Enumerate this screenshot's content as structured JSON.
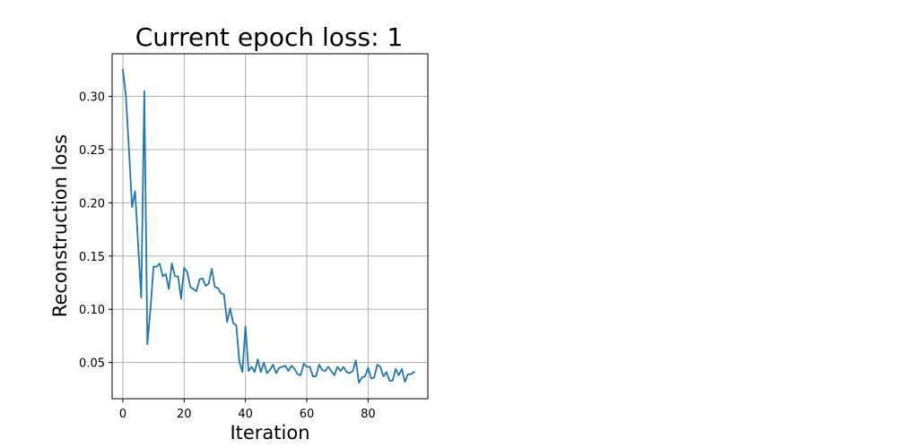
{
  "chart_data": {
    "type": "line",
    "title": "Current epoch loss: 1",
    "xlabel": "Iteration",
    "ylabel": "Reconstruction loss",
    "xlim": [
      -3.5,
      99.5
    ],
    "ylim": [
      0.016,
      0.34
    ],
    "xticks": [
      0,
      20,
      40,
      60,
      80
    ],
    "yticks": [
      0.05,
      0.1,
      0.15,
      0.2,
      0.25,
      0.3
    ],
    "ytick_labels": [
      "0.05",
      "0.10",
      "0.15",
      "0.20",
      "0.25",
      "0.30"
    ],
    "grid": true,
    "legend": "none",
    "line_color": "#1f77b4",
    "series": [
      {
        "x": [
          0,
          1,
          2,
          3,
          4,
          5,
          6,
          7,
          8,
          9,
          10,
          11,
          12,
          13,
          14,
          15,
          16,
          17,
          18,
          19,
          20,
          21,
          22,
          23,
          24,
          25,
          26,
          27,
          28,
          29,
          30,
          31,
          32,
          33,
          34,
          35,
          36,
          37,
          38,
          39,
          40,
          41,
          42,
          43,
          44,
          45,
          46,
          47,
          48,
          49,
          50,
          51,
          52,
          53,
          54,
          55,
          56,
          57,
          58,
          59,
          60,
          61,
          62,
          63,
          64,
          65,
          66,
          67,
          68,
          69,
          70,
          71,
          72,
          73,
          74,
          75,
          76,
          77,
          78,
          79,
          80,
          81,
          82,
          83,
          84,
          85,
          86,
          87,
          88,
          89,
          90,
          91,
          92,
          93,
          94,
          95
        ],
        "values": [
          0.325,
          0.3,
          0.25,
          0.196,
          0.211,
          0.16,
          0.111,
          0.305,
          0.067,
          0.1,
          0.14,
          0.14,
          0.143,
          0.131,
          0.133,
          0.119,
          0.143,
          0.131,
          0.131,
          0.11,
          0.139,
          0.135,
          0.121,
          0.119,
          0.117,
          0.128,
          0.129,
          0.122,
          0.124,
          0.138,
          0.121,
          0.12,
          0.115,
          0.114,
          0.088,
          0.101,
          0.087,
          0.085,
          0.051,
          0.041,
          0.084,
          0.042,
          0.046,
          0.041,
          0.053,
          0.041,
          0.05,
          0.04,
          0.043,
          0.048,
          0.04,
          0.045,
          0.046,
          0.047,
          0.042,
          0.047,
          0.044,
          0.039,
          0.038,
          0.049,
          0.046,
          0.046,
          0.037,
          0.037,
          0.048,
          0.043,
          0.042,
          0.046,
          0.042,
          0.038,
          0.046,
          0.042,
          0.046,
          0.041,
          0.04,
          0.042,
          0.052,
          0.031,
          0.036,
          0.037,
          0.045,
          0.035,
          0.036,
          0.048,
          0.046,
          0.037,
          0.041,
          0.033,
          0.033,
          0.044,
          0.038,
          0.044,
          0.032,
          0.039,
          0.039,
          0.041
        ]
      }
    ]
  }
}
